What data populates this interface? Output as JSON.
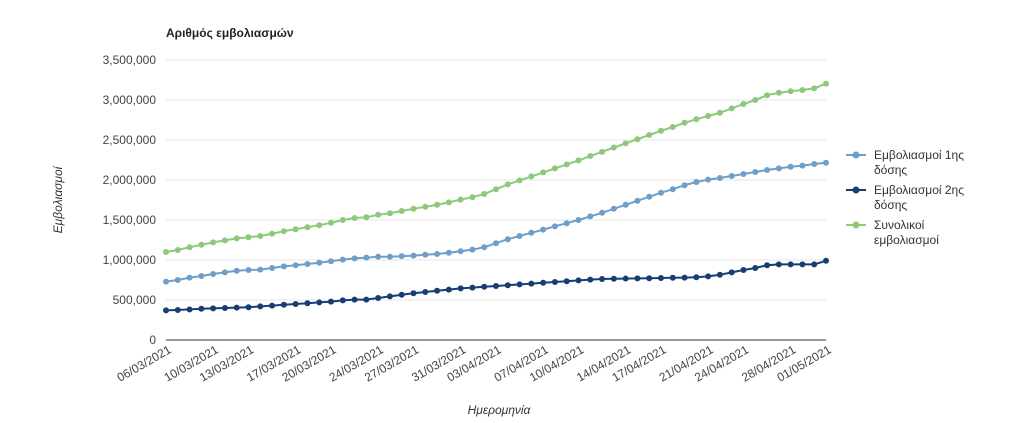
{
  "chart_data": {
    "type": "line",
    "title": "Αριθμός εμβολιασμών",
    "xlabel": "Ημερομηνία",
    "ylabel": "Εμβολιασμοί",
    "ylim": [
      0,
      3500000
    ],
    "yticks": [
      0,
      500000,
      1000000,
      1500000,
      2000000,
      2500000,
      3000000,
      3500000
    ],
    "ytick_labels": [
      "0",
      "500,000",
      "1,000,000",
      "1,500,000",
      "2,000,000",
      "2,500,000",
      "3,000,000",
      "3,500,000"
    ],
    "xtick_labels": [
      "06/03/2021",
      "10/03/2021",
      "13/03/2021",
      "17/03/2021",
      "20/03/2021",
      "24/03/2021",
      "27/03/2021",
      "31/03/2021",
      "03/04/2021",
      "07/04/2021",
      "10/04/2021",
      "14/04/2021",
      "17/04/2021",
      "21/04/2021",
      "24/04/2021",
      "28/04/2021",
      "01/05/2021"
    ],
    "xtick_indices": [
      0,
      4,
      7,
      11,
      14,
      18,
      21,
      25,
      28,
      32,
      35,
      39,
      42,
      46,
      49,
      53,
      56
    ],
    "grid": true,
    "legend_position": "right",
    "x_start": "06/03/2021",
    "x_end": "04/05/2021",
    "series": [
      {
        "name": "Εμβολιασμοί 1ης δόσης",
        "legend_lines": [
          "Εμβολιασμοί 1ης",
          "δόσης"
        ],
        "color": "#6f9fc8",
        "values": [
          730000,
          750000,
          780000,
          800000,
          825000,
          845000,
          865000,
          875000,
          880000,
          900000,
          920000,
          935000,
          950000,
          965000,
          985000,
          1005000,
          1020000,
          1030000,
          1040000,
          1040000,
          1048000,
          1055000,
          1065000,
          1075000,
          1090000,
          1110000,
          1130000,
          1160000,
          1210000,
          1260000,
          1300000,
          1340000,
          1380000,
          1420000,
          1460000,
          1500000,
          1545000,
          1590000,
          1640000,
          1690000,
          1740000,
          1790000,
          1840000,
          1885000,
          1935000,
          1975000,
          2005000,
          2025000,
          2050000,
          2075000,
          2100000,
          2125000,
          2145000,
          2165000,
          2180000,
          2200000,
          2215000
        ]
      },
      {
        "name": "Εμβολιασμοί 2ης δόσης",
        "legend_lines": [
          "Εμβολιασμοί 2ης",
          "δόσης"
        ],
        "color": "#173e72",
        "values": [
          370000,
          375000,
          382000,
          390000,
          395000,
          400000,
          405000,
          410000,
          420000,
          430000,
          440000,
          450000,
          460000,
          470000,
          480000,
          495000,
          505000,
          505000,
          525000,
          545000,
          565000,
          585000,
          600000,
          615000,
          630000,
          645000,
          655000,
          665000,
          675000,
          685000,
          695000,
          705000,
          715000,
          725000,
          735000,
          745000,
          755000,
          762000,
          766000,
          768000,
          770000,
          772000,
          775000,
          778000,
          780000,
          785000,
          795000,
          815000,
          845000,
          875000,
          900000,
          935000,
          945000,
          945000,
          945000,
          945000,
          990000
        ]
      },
      {
        "name": "Συνολικοί εμβολιασμοί",
        "legend_lines": [
          "Συνολικοί",
          "εμβολιασμοί"
        ],
        "color": "#8cc97a",
        "values": [
          1100000,
          1125000,
          1160000,
          1190000,
          1220000,
          1245000,
          1270000,
          1285000,
          1300000,
          1330000,
          1360000,
          1385000,
          1410000,
          1435000,
          1465000,
          1500000,
          1525000,
          1535000,
          1565000,
          1585000,
          1613000,
          1640000,
          1665000,
          1690000,
          1720000,
          1755000,
          1785000,
          1825000,
          1885000,
          1945000,
          1995000,
          2045000,
          2095000,
          2145000,
          2195000,
          2245000,
          2300000,
          2352000,
          2406000,
          2458000,
          2510000,
          2562000,
          2615000,
          2663000,
          2715000,
          2760000,
          2800000,
          2840000,
          2895000,
          2950000,
          3000000,
          3060000,
          3090000,
          3110000,
          3125000,
          3145000,
          3205000
        ]
      }
    ]
  }
}
